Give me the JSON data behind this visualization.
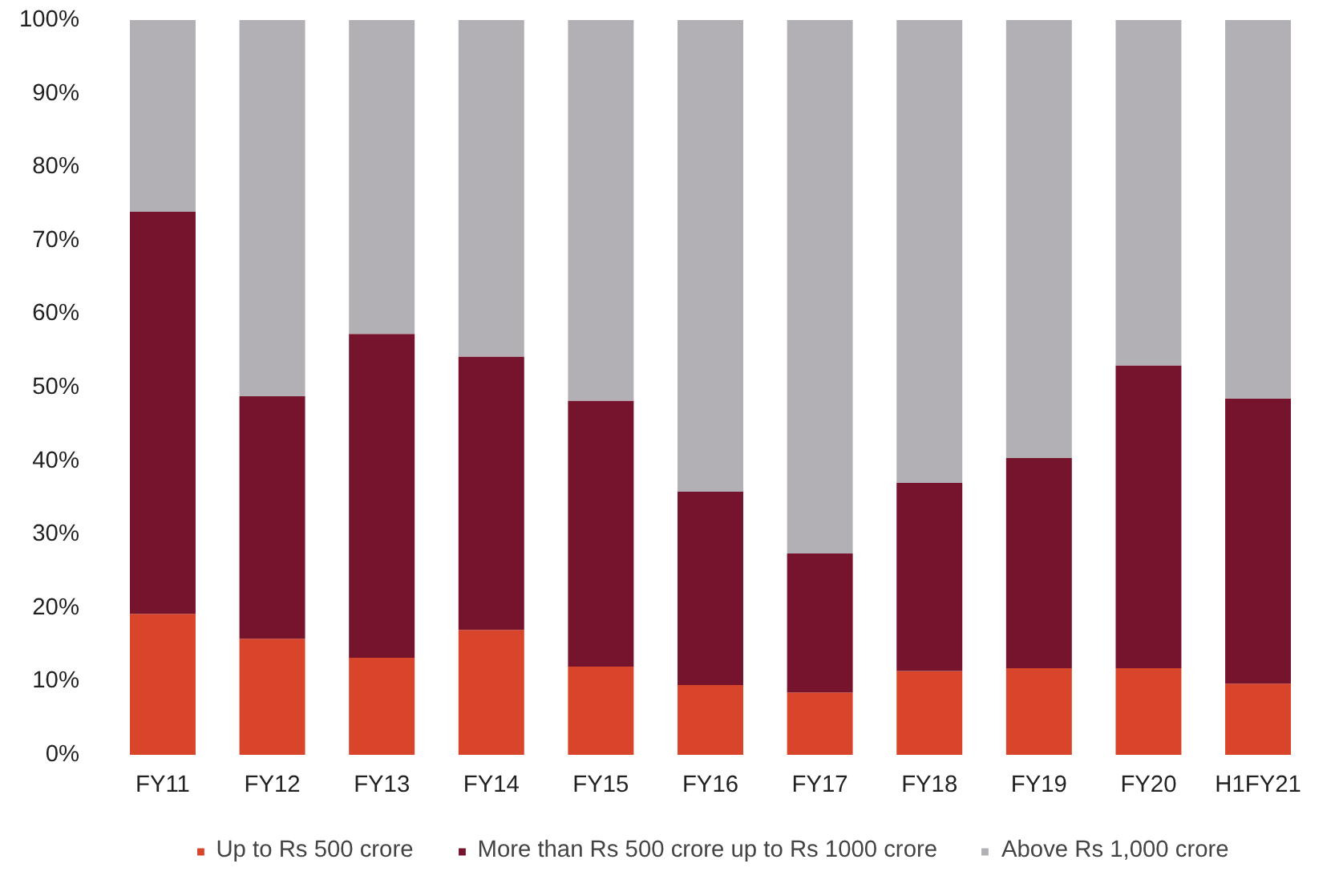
{
  "chart_data": {
    "type": "bar",
    "stacked": true,
    "categories": [
      "FY11",
      "FY12",
      "FY13",
      "FY14",
      "FY15",
      "FY16",
      "FY17",
      "FY18",
      "FY19",
      "FY20",
      "H1FY21"
    ],
    "series": [
      {
        "name": "Up to Rs 500 crore",
        "color": "#d9452a",
        "values": [
          19.2,
          15.8,
          13.2,
          17.0,
          12.0,
          9.5,
          8.5,
          11.4,
          11.8,
          11.8,
          9.7
        ]
      },
      {
        "name": "More than Rs 500 crore up to Rs 1000 crore",
        "color": "#76132d",
        "values": [
          54.7,
          33.0,
          44.1,
          37.2,
          36.2,
          26.3,
          18.9,
          25.6,
          28.6,
          41.2,
          38.8
        ]
      },
      {
        "name": "Above Rs 1,000 crore",
        "color": "#b3b0b5",
        "values": [
          26.1,
          51.2,
          42.7,
          45.8,
          51.8,
          64.2,
          72.6,
          63.0,
          59.6,
          47.0,
          51.5
        ]
      }
    ],
    "ylim": [
      0,
      100
    ],
    "yticks": [
      {
        "value": 0,
        "label": "0%"
      },
      {
        "value": 10,
        "label": "10%"
      },
      {
        "value": 20,
        "label": "20%"
      },
      {
        "value": 30,
        "label": "30%"
      },
      {
        "value": 40,
        "label": "40%"
      },
      {
        "value": 50,
        "label": "50%"
      },
      {
        "value": 60,
        "label": "60%"
      },
      {
        "value": 70,
        "label": "70%"
      },
      {
        "value": 80,
        "label": "80%"
      },
      {
        "value": 90,
        "label": "90%"
      },
      {
        "value": 100,
        "label": "100%"
      }
    ],
    "grid": false,
    "legend": "bottom"
  }
}
